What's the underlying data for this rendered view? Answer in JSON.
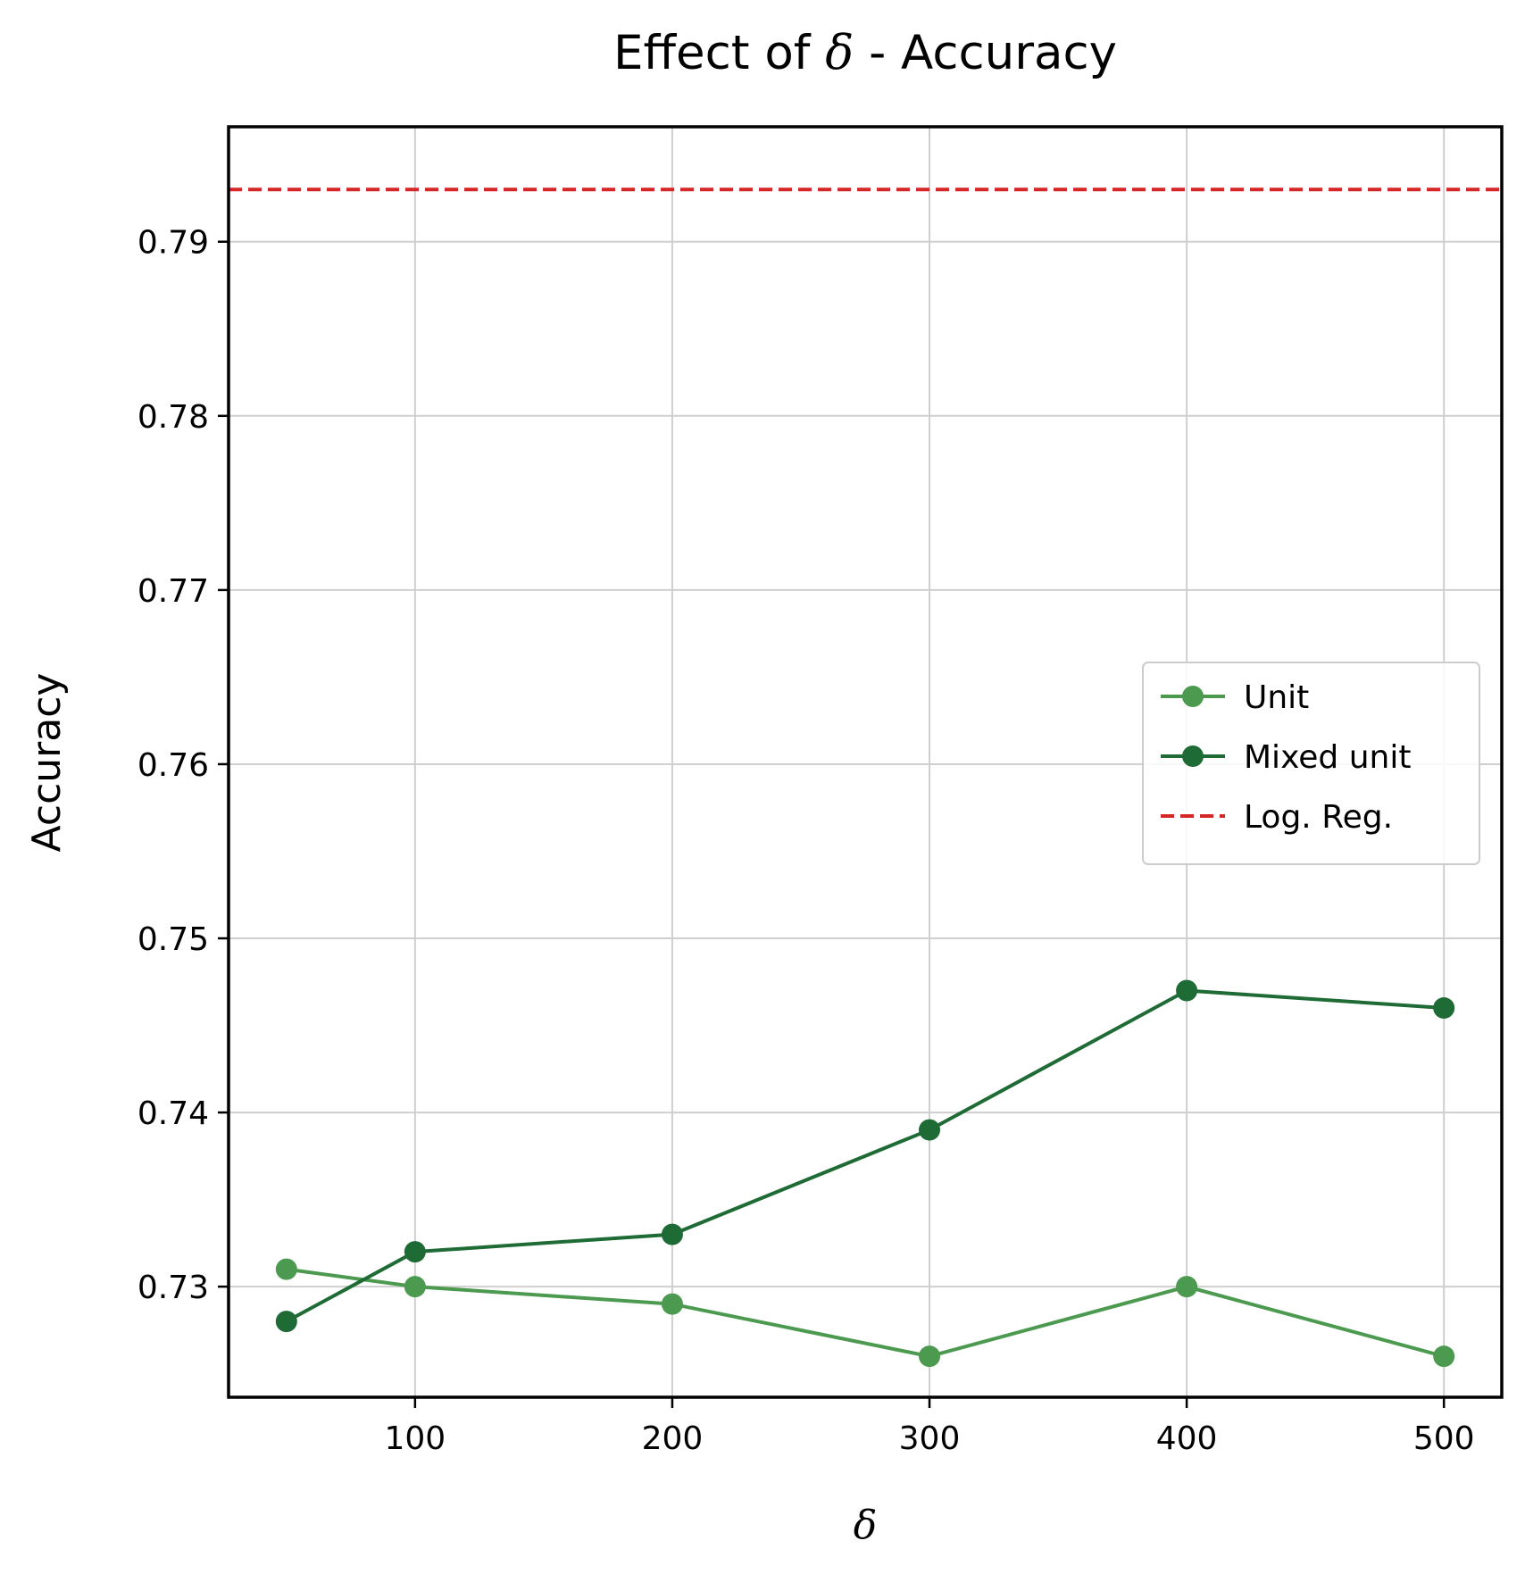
{
  "chart_data": {
    "type": "line",
    "title": {
      "prefix": "Effect of ",
      "symbol": "δ",
      "suffix": " - Accuracy"
    },
    "xlabel": "δ",
    "ylabel": "Accuracy",
    "xlim": [
      27.5,
      522.5
    ],
    "ylim": [
      0.72365,
      0.7966
    ],
    "xticks": [
      100,
      200,
      300,
      400,
      500
    ],
    "yticks": [
      0.73,
      0.74,
      0.75,
      0.76,
      0.77,
      0.78,
      0.79
    ],
    "grid": true,
    "legend_position": "center-right",
    "x": [
      50,
      100,
      200,
      300,
      400,
      500
    ],
    "series": [
      {
        "name": "Unit",
        "values": [
          0.731,
          0.73,
          0.729,
          0.726,
          0.73,
          0.726
        ],
        "color": "#4c9a50",
        "style": "solid",
        "marker": "circle"
      },
      {
        "name": "Mixed unit",
        "values": [
          0.728,
          0.732,
          0.733,
          0.739,
          0.747,
          0.746
        ],
        "color": "#1e6b35",
        "style": "solid",
        "marker": "circle"
      }
    ],
    "reference_lines": [
      {
        "name": "Log. Reg.",
        "y": 0.793,
        "color": "#d62728",
        "style": "dashed"
      }
    ]
  }
}
